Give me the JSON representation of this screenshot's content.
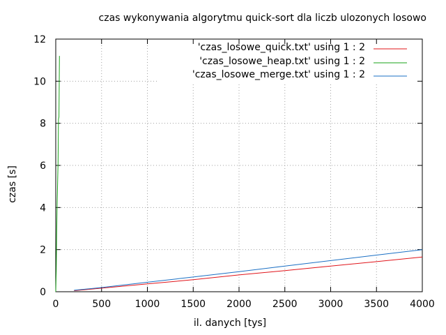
{
  "chart_data": {
    "type": "line",
    "title": "czas wykonywania algorytmu quick-sort dla liczb ulozonych losowo",
    "xlabel": "il. danych [tys]",
    "ylabel": "czas [s]",
    "xlim": [
      0,
      4000
    ],
    "ylim": [
      0,
      12
    ],
    "xticks": [
      "0",
      "500",
      "1000",
      "1500",
      "2000",
      "2500",
      "3000",
      "3500",
      "4000"
    ],
    "yticks": [
      "0",
      "2",
      "4",
      "6",
      "8",
      "10",
      "12"
    ],
    "grid": true,
    "legend_position": "top-right",
    "series": [
      {
        "name": "'czas_losowe_quick.txt' using 1 : 2",
        "color": "#e0141a",
        "x": [
          200,
          500,
          1000,
          1500,
          2000,
          2500,
          3000,
          3500,
          4000
        ],
        "y": [
          0.05,
          0.17,
          0.37,
          0.57,
          0.8,
          1.0,
          1.22,
          1.43,
          1.65
        ]
      },
      {
        "name": "'czas_losowe_heap.txt' using 1 : 2",
        "color": "#1aa31a",
        "x": [
          0,
          5,
          10,
          15,
          20,
          25,
          30,
          35,
          40
        ],
        "y": [
          0.0,
          1.0,
          2.7,
          4.2,
          5.1,
          6.1,
          8.2,
          8.3,
          11.2
        ]
      },
      {
        "name": "'czas_losowe_merge.txt' using 1 : 2",
        "color": "#1a6fc4",
        "x": [
          200,
          500,
          1000,
          1500,
          2000,
          2500,
          3000,
          3500,
          4000
        ],
        "y": [
          0.07,
          0.2,
          0.45,
          0.7,
          0.95,
          1.22,
          1.48,
          1.74,
          2.0
        ]
      }
    ]
  }
}
